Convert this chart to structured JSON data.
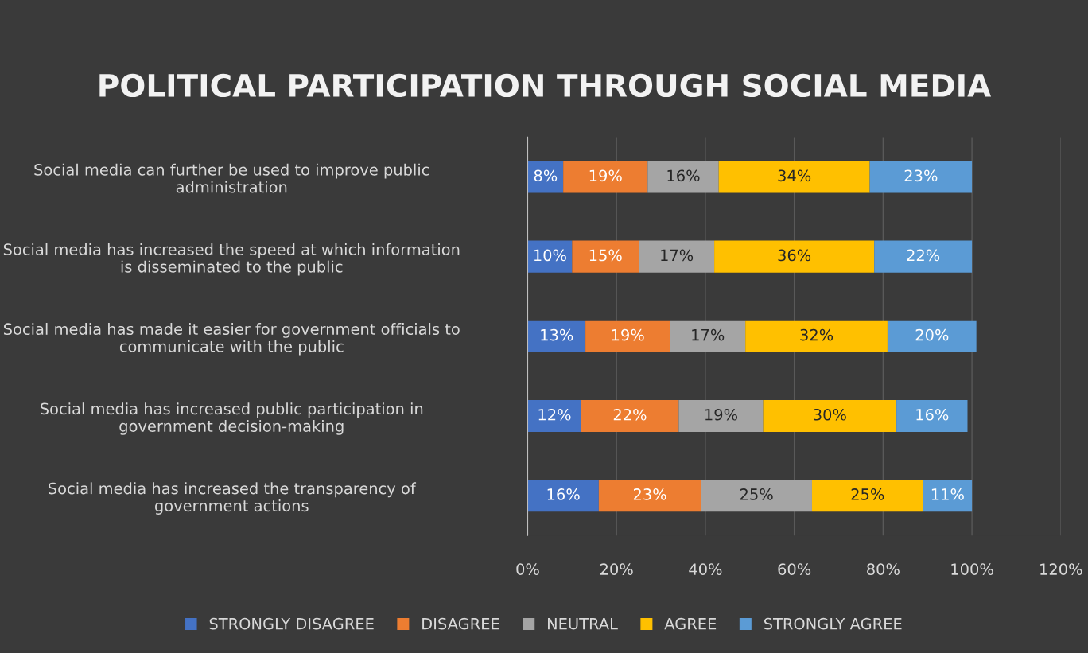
{
  "chart_data": {
    "type": "bar",
    "orientation": "horizontal",
    "stacked": true,
    "title": "POLITICAL PARTICIPATION THROUGH SOCIAL MEDIA",
    "categories": [
      "Social media can further be used to improve public administration",
      "Social media has increased the speed at which information is disseminated to the public",
      "Social media has made it easier for government officials to communicate with the public",
      "Social media has increased public participation in government decision-making",
      "Social media has increased the transparency of government actions"
    ],
    "series": [
      {
        "name": "STRONGLY DISAGREE",
        "color": "#4472c4",
        "values": [
          8,
          10,
          13,
          12,
          16
        ],
        "value_labels": [
          "8%",
          "10%",
          "13%",
          "12%",
          "16%"
        ]
      },
      {
        "name": "DISAGREE",
        "color": "#ed7d31",
        "values": [
          19,
          15,
          19,
          22,
          23
        ],
        "value_labels": [
          "19%",
          "15%",
          "19%",
          "22%",
          "23%"
        ]
      },
      {
        "name": "NEUTRAL",
        "color": "#a5a5a5",
        "values": [
          16,
          17,
          17,
          19,
          25
        ],
        "value_labels": [
          "16%",
          "17%",
          "17%",
          "19%",
          "25%"
        ]
      },
      {
        "name": "AGREE",
        "color": "#ffc000",
        "values": [
          34,
          36,
          32,
          30,
          25
        ],
        "value_labels": [
          "34%",
          "36%",
          "32%",
          "30%",
          "25%"
        ]
      },
      {
        "name": "STRONGLY AGREE",
        "color": "#5b9bd5",
        "values": [
          23,
          22,
          20,
          16,
          11
        ],
        "value_labels": [
          "23%",
          "22%",
          "20%",
          "16%",
          "11%"
        ]
      }
    ],
    "xlim": [
      0,
      120
    ],
    "xticks": [
      {
        "value": 0,
        "label": "0%"
      },
      {
        "value": 20,
        "label": "20%"
      },
      {
        "value": 40,
        "label": "40%"
      },
      {
        "value": 60,
        "label": "60%"
      },
      {
        "value": 80,
        "label": "80%"
      },
      {
        "value": 100,
        "label": "100%"
      },
      {
        "value": 120,
        "label": "120%"
      }
    ],
    "grid": "x",
    "legend": "bottom"
  }
}
